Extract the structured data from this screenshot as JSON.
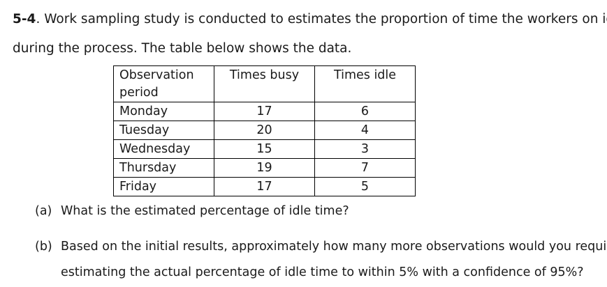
{
  "problem": {
    "number": "5-4",
    "text_line1": ". Work sampling study is conducted to estimates the proportion of time the workers on idle",
    "text_line2": "during the process. The table below shows the data."
  },
  "table": {
    "headers": [
      "Observation period",
      "Times busy",
      "Times idle"
    ],
    "rows": [
      [
        "Monday",
        "17",
        "6"
      ],
      [
        "Tuesday",
        "20",
        "4"
      ],
      [
        "Wednesday",
        "15",
        "3"
      ],
      [
        "Thursday",
        "19",
        "7"
      ],
      [
        "Friday",
        "17",
        "5"
      ]
    ]
  },
  "questions": {
    "a_label": "(a)",
    "a_text": "What is the estimated percentage of idle time?",
    "b_label": "(b)",
    "b_text_line1": "Based on the initial results, approximately how many more observations would you require",
    "b_text_line2": "estimating the actual percentage of idle time to within 5% with a confidence of 95%?"
  }
}
